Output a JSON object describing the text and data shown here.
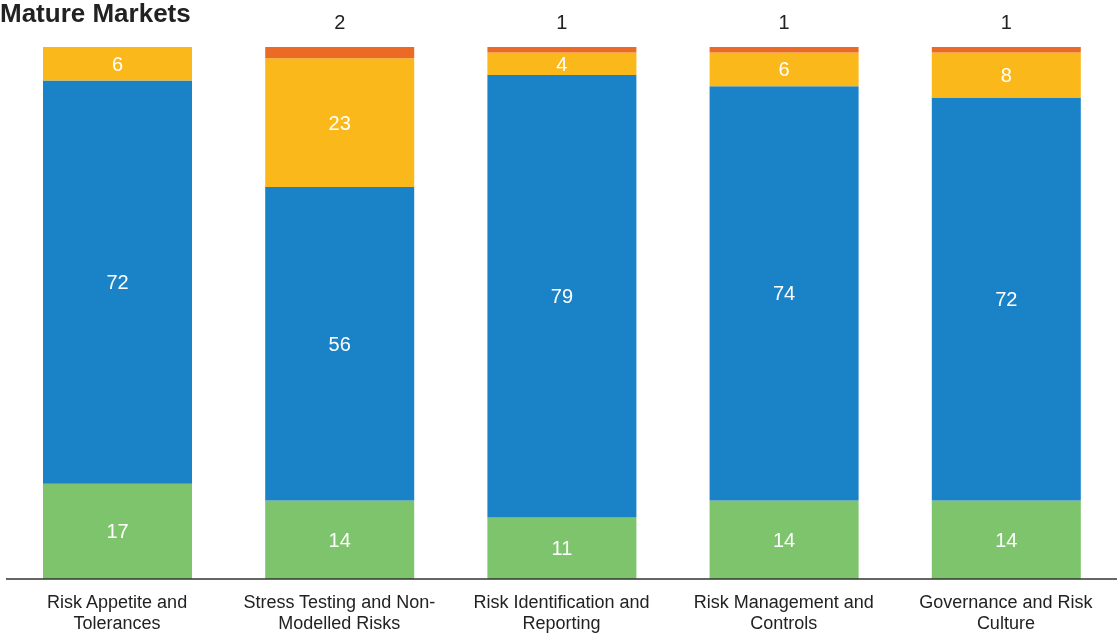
{
  "chart_data": {
    "type": "bar",
    "title": "Mature Markets",
    "categories": [
      "Risk Appetite and Tolerances",
      "Stress Testing and Non-Modelled Risks",
      "Risk Identification and Reporting",
      "Risk Management and Controls",
      "Governance and Risk Culture"
    ],
    "stacked": true,
    "series": [
      {
        "color": "#7dc46c",
        "values": [
          17,
          14,
          11,
          14,
          14
        ]
      },
      {
        "color": "#1a82c6",
        "values": [
          72,
          56,
          79,
          74,
          72
        ]
      },
      {
        "color": "#fbb81b",
        "values": [
          6,
          23,
          4,
          6,
          8
        ]
      },
      {
        "color": "#eb6b26",
        "values": [
          null,
          2,
          1,
          1,
          1
        ]
      }
    ],
    "ylim": [
      0,
      95
    ],
    "tick_labels": "x",
    "data_labels": true
  }
}
